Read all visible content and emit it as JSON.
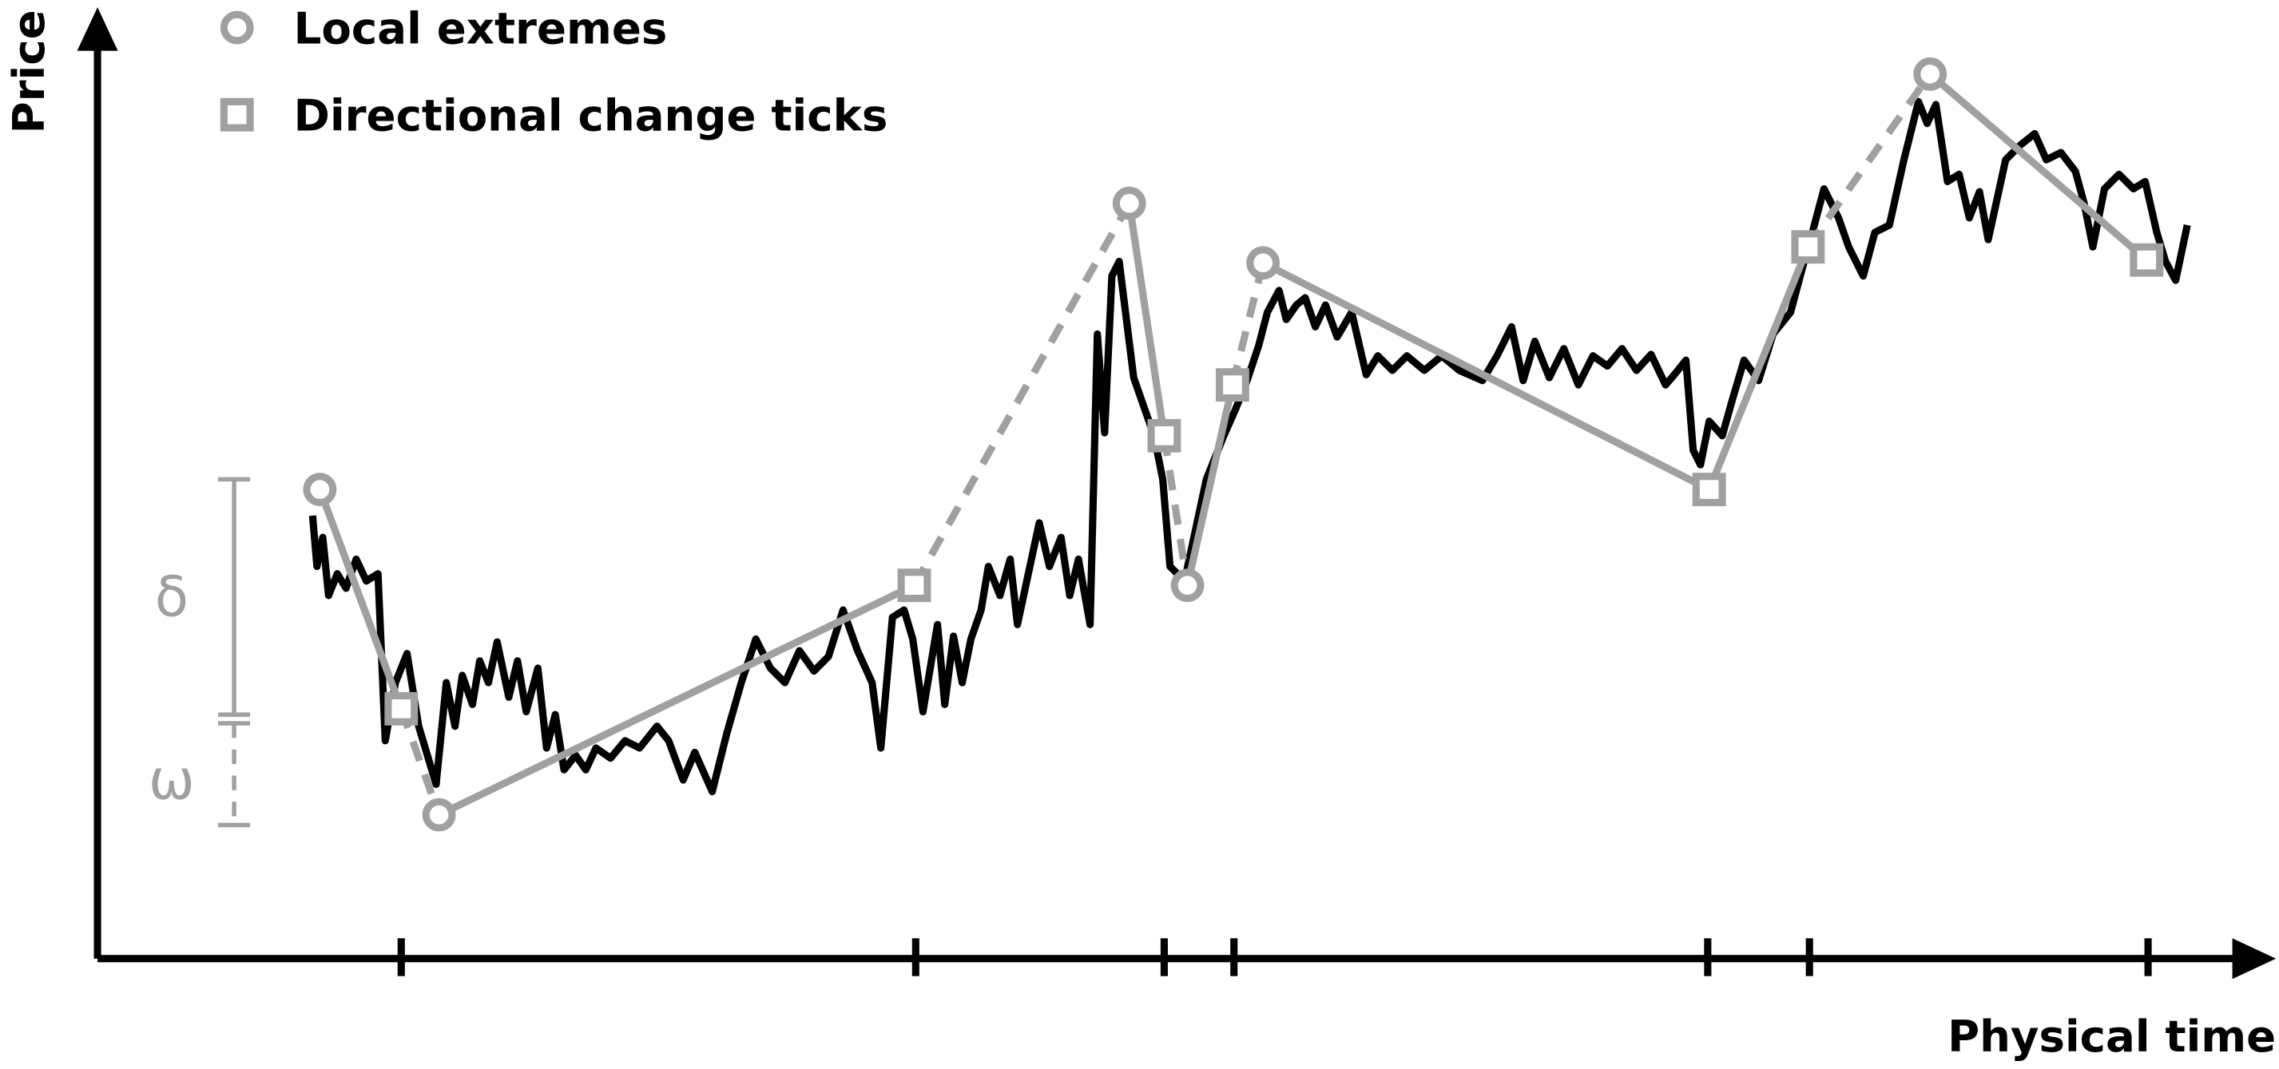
{
  "axes": {
    "y_label": "Price",
    "x_label": "Physical time"
  },
  "legend": {
    "extremes": "Local extremes",
    "ticks": "Directional change ticks"
  },
  "thresholds": {
    "delta": "δ",
    "omega": "ω"
  }
}
